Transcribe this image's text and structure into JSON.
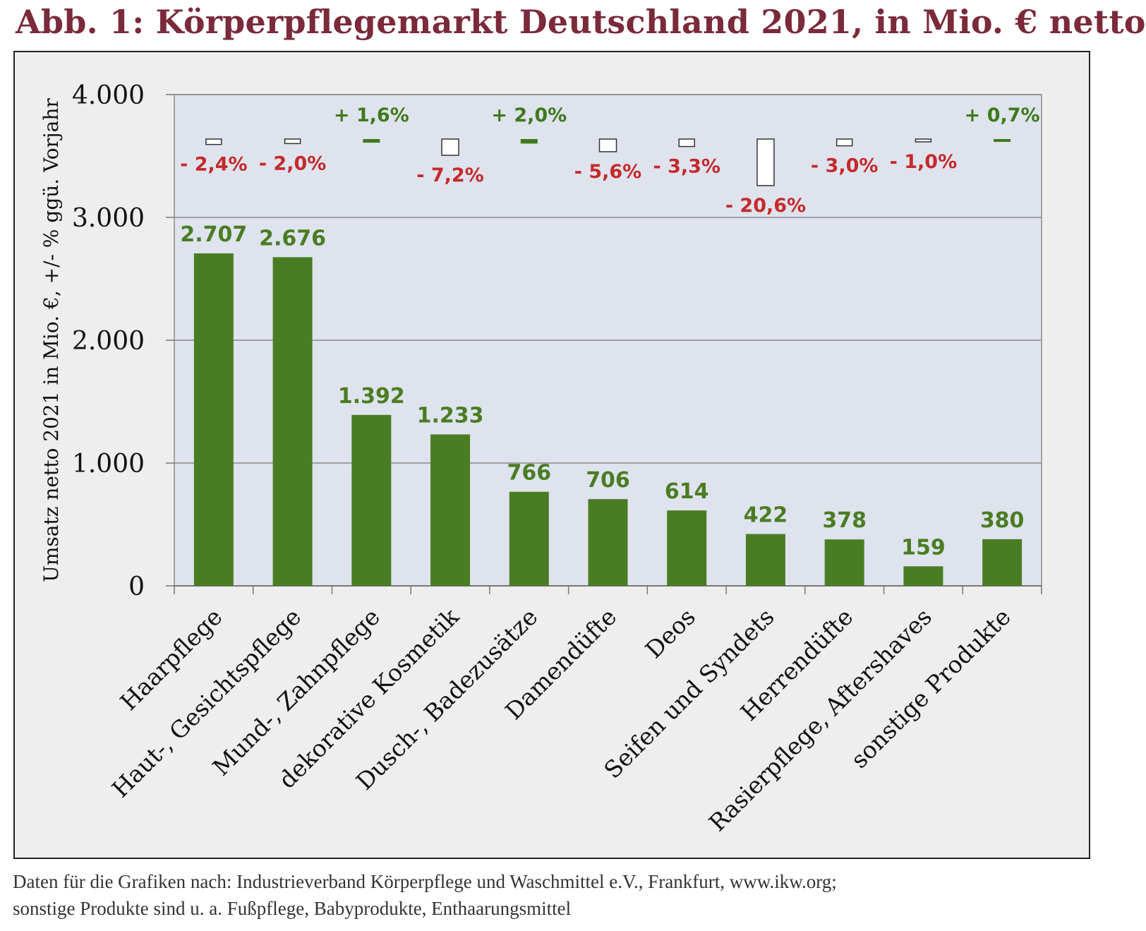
{
  "title": "Abb. 1: Körperpflegemarkt Deutschland 2021, in Mio. € netto",
  "source_lines": [
    "Daten für die Grafiken nach: Industrieverband Körperpflege und Waschmittel e.V., Frankfurt, www.ikw.org;",
    "sonstige Produkte sind u. a. Fußpflege, Babyprodukte, Enthaarungsmittel"
  ],
  "colors": {
    "title": "#7a2a3a",
    "bar": "#4a7d23",
    "value_label": "#4a7d23",
    "positive": "#3e7a1c",
    "negative": "#c42a2a",
    "plot_bg": "#dfe3ee",
    "frame_bg": "#eeeeee"
  },
  "chart_data": {
    "type": "bar",
    "ylabel": "Umsatz netto 2021 in Mio. €, +/-  % ggü. Vorjahr",
    "ylim": [
      0,
      4000
    ],
    "yticks": [
      0,
      1000,
      2000,
      3000,
      4000
    ],
    "ytick_labels": [
      "0",
      "1.000",
      "2.000",
      "3.000",
      "4.000"
    ],
    "grid": true,
    "categories": [
      "Haarpflege",
      "Haut-, Gesichtspflege",
      "Mund-, Zahnpflege",
      "dekorative Kosmetik",
      "Dusch-, Badezusätze",
      "Damendüfte",
      "Deos",
      "Seifen und Syndets",
      "Herrendüfte",
      "Rasierpflege, Aftershaves",
      "sonstige Produkte"
    ],
    "values": [
      2707,
      2676,
      1392,
      1233,
      766,
      706,
      614,
      422,
      378,
      159,
      380
    ],
    "value_labels": [
      "2.707",
      "2.676",
      "1.392",
      "1.233",
      "766",
      "706",
      "614",
      "422",
      "378",
      "159",
      "380"
    ],
    "change_pct": [
      -2.4,
      -2.0,
      1.6,
      -7.2,
      2.0,
      -5.6,
      -3.3,
      -20.6,
      -3.0,
      -1.0,
      0.7
    ],
    "change_labels": [
      "- 2,4%",
      "- 2,0%",
      "+ 1,6%",
      "- 7,2%",
      "+ 2,0%",
      "- 5,6%",
      "- 3,3%",
      "- 20,6%",
      "- 3,0%",
      "- 1,0%",
      "+ 0,7%"
    ]
  }
}
